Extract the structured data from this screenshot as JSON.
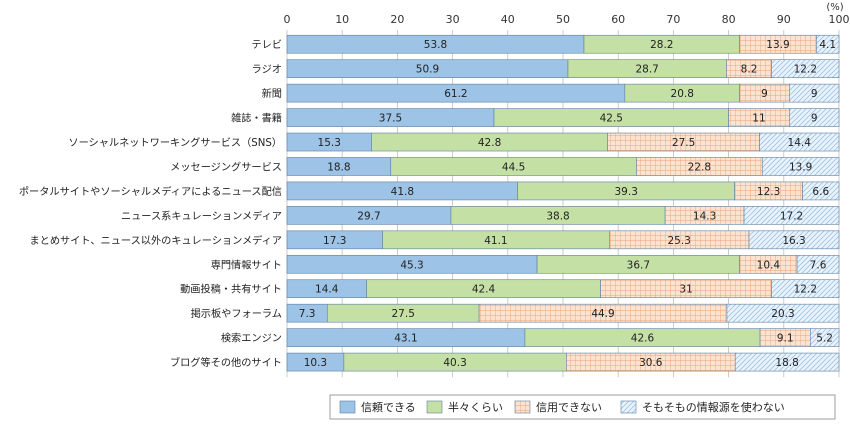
{
  "chart_data": {
    "type": "bar",
    "orientation": "horizontal",
    "stacked": true,
    "unit": "(%)",
    "xlim": [
      0,
      100
    ],
    "xticks": [
      "0",
      "10",
      "20",
      "30",
      "40",
      "50",
      "60",
      "70",
      "80",
      "90",
      "100"
    ],
    "grid": true,
    "legend_position": "bottom",
    "categories": [
      "テレビ",
      "ラジオ",
      "新聞",
      "雑誌・書籍",
      "ソーシャルネットワーキングサービス（SNS）",
      "メッセージングサービス",
      "ポータルサイトやソーシャルメディアによるニュース配信",
      "ニュース系キュレーションメディア",
      "まとめサイト、ニュース以外のキュレーションメディア",
      "専門情報サイト",
      "動画投稿・共有サイト",
      "掲示板やフォーラム",
      "検索エンジン",
      "ブログ等その他のサイト"
    ],
    "series": [
      {
        "name": "信頼できる",
        "color": "#9dc3e6",
        "pattern": "solid",
        "values": [
          53.8,
          50.9,
          61.2,
          37.5,
          15.3,
          18.8,
          41.8,
          29.7,
          17.3,
          45.3,
          14.4,
          7.3,
          43.1,
          10.3
        ]
      },
      {
        "name": "半々くらい",
        "color": "#c5e0a5",
        "pattern": "solid",
        "values": [
          28.2,
          28.7,
          20.8,
          42.5,
          42.8,
          44.5,
          39.3,
          38.8,
          41.1,
          36.7,
          42.4,
          27.5,
          42.6,
          40.3
        ]
      },
      {
        "name": "信用できない",
        "color": "#f8cbad",
        "pattern": "grid",
        "values": [
          13.9,
          8.2,
          9.0,
          11.0,
          27.5,
          22.8,
          12.3,
          14.3,
          25.3,
          10.4,
          31.0,
          44.9,
          9.1,
          30.6
        ]
      },
      {
        "name": "そもそもの情報源を使わない",
        "color": "#deebf7",
        "pattern": "hatch",
        "values": [
          4.1,
          12.2,
          9.0,
          9.0,
          14.4,
          13.9,
          6.6,
          17.2,
          16.3,
          7.6,
          12.2,
          20.3,
          5.2,
          18.8
        ]
      }
    ]
  }
}
